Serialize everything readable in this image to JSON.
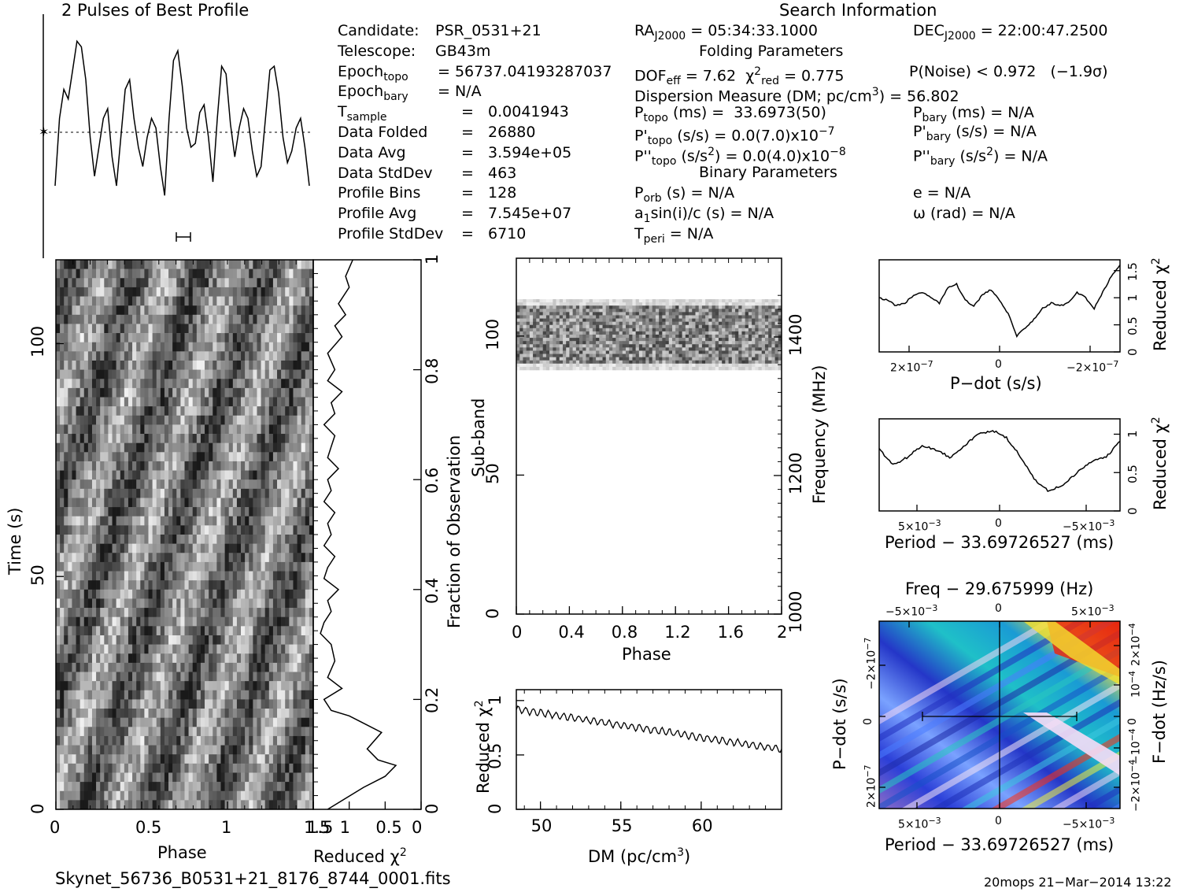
{
  "header": {
    "profile_title": "2 Pulses of Best Profile",
    "search_title": "Search Information",
    "folding_title": "Folding Parameters",
    "binary_title": "Binary Parameters"
  },
  "info_left": [
    {
      "label": "Candidate:",
      "value": "PSR_0531+21"
    },
    {
      "label": "Telescope:",
      "value": "GB43m"
    },
    {
      "label": "Epoch",
      "sub": "topo",
      "value": "= 56737.04193287037"
    },
    {
      "label": "Epoch",
      "sub": "bary",
      "value": "= N/A"
    },
    {
      "label": "T",
      "sub": "sample",
      "value": "=   0.0041943"
    },
    {
      "label": "Data Folded",
      "value": "=   26880"
    },
    {
      "label": "Data Avg",
      "value": "=   3.594e+05"
    },
    {
      "label": "Data StdDev",
      "value": "=   463"
    },
    {
      "label": "Profile Bins",
      "value": "=   128"
    },
    {
      "label": "Profile Avg",
      "value": "=   7.545e+07"
    },
    {
      "label": "Profile StdDev",
      "value": "=   6710"
    }
  ],
  "info_right": {
    "ra": "RA",
    "ra_sub": "J2000",
    "ra_value": "= 05:34:33.1000",
    "dec": "DEC",
    "dec_sub": "J2000",
    "dec_value": "= 22:00:47.2500",
    "dof": "DOF",
    "dof_sub": "eff",
    "dof_value": "= 7.62",
    "chi": "χ",
    "chi_sup": "2",
    "chi_sub": "red",
    "chi_value": "= 0.775",
    "pnoise": "P(Noise) < 0.972   (−1.9σ)",
    "dm": "Dispersion Measure (DM; pc/cm",
    "dm_sup": "3",
    "dm_value": ") = 56.802",
    "ptopo": "P",
    "ptopo_sub": "topo",
    "ptopo_value": " (ms) =  33.6973(50)",
    "pbary": "P",
    "pbary_sub": "bary",
    "pbary_value": " (ms) = N/A",
    "pdtopo": "P'",
    "pdtopo_sub": "topo",
    "pdtopo_value": " (s/s) = 0.0(7.0)x10",
    "pdtopo_exp": "−7",
    "pdbary": "P'",
    "pdbary_sub": "bary",
    "pdbary_value": " (s/s) = N/A",
    "pddtopo": "P''",
    "pddtopo_sub": "topo",
    "pddtopo_value": " (s/s",
    "pddtopo_sup": "2",
    "pddtopo_value2": ") = 0.0(4.0)x10",
    "pddtopo_exp": "−8",
    "pddbary": "P''",
    "pddbary_sub": "bary",
    "pddbary_value": " (s/s",
    "pddbary_sup": "2",
    "pddbary_value2": ") = N/A",
    "porb": "P",
    "porb_sub": "orb",
    "porb_value": " (s) = N/A",
    "e": "e = N/A",
    "a1": "a",
    "a1_sub": "1",
    "a1_value": "sin(i)/c (s) = N/A",
    "omega": "ω (rad) = N/A",
    "tperi": "T",
    "tperi_sub": "peri",
    "tperi_value": " = N/A"
  },
  "labels": {
    "time": "Time (s)",
    "phase": "Phase",
    "reduced_chi": "Reduced χ",
    "chi_sup": "2",
    "fraction": "Fraction of Observation",
    "subband": "Sub-band",
    "frequency": "Frequency (MHz)",
    "dm_axis": "DM (pc/cm",
    "dm_axis_sup": "3",
    "dm_axis_end": ")",
    "pdot": "P−dot (s/s)",
    "period": "Period − 33.69726527 (ms)",
    "freq_title": "Freq − 29.675999 (Hz)",
    "fdot": "F−dot (Hz/s)",
    "pdot_short": "P−dot (s/s)"
  },
  "ticks": {
    "time_left": [
      "0",
      "50",
      "100"
    ],
    "phase_bottom": [
      "0",
      "0.5",
      "1",
      "1.5"
    ],
    "redchi_bottom": [
      "1.5",
      "1",
      "0.5",
      "0"
    ],
    "fraction_right": [
      "0",
      "0.2",
      "0.4",
      "0.6",
      "0.8",
      "1"
    ],
    "subband_left": [
      "0",
      "50",
      "100"
    ],
    "freq_right": [
      "1000",
      "1200",
      "1400"
    ],
    "phase2_bottom": [
      "0",
      "0.4",
      "0.8",
      "1.2",
      "1.6",
      "2"
    ],
    "dm_bottom": [
      "50",
      "55",
      "60"
    ],
    "redchi_dm_left": [
      "0",
      "0.5",
      "1"
    ],
    "pdot_bottom_base": [
      "2×10",
      "0",
      "−2×10"
    ],
    "pdot_bottom_exp": [
      "−7",
      "",
      "−7"
    ],
    "redchi_right": [
      "0",
      "0.5",
      "1",
      "1.5"
    ],
    "redchi_right2": [
      "0",
      "0.5",
      "1"
    ],
    "period_bottom_base": [
      "5×10",
      "0",
      "−5×10"
    ],
    "period_bottom_exp": [
      "−3",
      "",
      "−3"
    ],
    "freq_top_base": [
      "−5×10",
      "0",
      "5×10"
    ],
    "freq_top_exp": [
      "−3",
      "",
      "−3"
    ],
    "pdot_left_base": [
      "−2×10",
      "0",
      "2×10"
    ],
    "pdot_left_exp": [
      "−7",
      "",
      "−7"
    ],
    "fdot_right_base": [
      "2×10",
      "10",
      "0",
      "−10",
      "−2×10"
    ],
    "fdot_right_exp": [
      "−4",
      "−4",
      "",
      "−4",
      "−4"
    ]
  },
  "footer": {
    "filename": "Skynet_56736_B0531+21_8176_8744_0001.fits",
    "stamp": "20mops 21−Mar−2014 13:22"
  },
  "chart_data": [
    {
      "type": "line",
      "name": "profile",
      "xlabel": "",
      "ylabel": "",
      "xlim": [
        0,
        2
      ],
      "y": [
        0.2,
        0.55,
        0.7,
        0.65,
        0.8,
        0.95,
        0.92,
        0.75,
        0.45,
        0.25,
        0.4,
        0.55,
        0.6,
        0.35,
        0.2,
        0.45,
        0.7,
        0.75,
        0.55,
        0.4,
        0.3,
        0.45,
        0.55,
        0.5,
        0.3,
        0.15,
        0.55,
        0.85,
        0.9,
        0.72,
        0.5,
        0.4,
        0.42,
        0.58,
        0.62,
        0.45,
        0.22,
        0.55,
        0.82,
        0.78,
        0.52,
        0.35,
        0.5,
        0.6,
        0.55,
        0.38,
        0.25,
        0.3,
        0.55,
        0.8,
        0.82,
        0.68,
        0.45,
        0.32,
        0.38,
        0.5,
        0.55,
        0.4,
        0.2
      ]
    },
    {
      "type": "line",
      "name": "reduced_chi_time",
      "xlabel": "Reduced χ2",
      "ylabel": "Fraction of Observation",
      "xlim": [
        1.5,
        0
      ],
      "ylim": [
        0,
        1
      ],
      "x": [
        1.3,
        0.8,
        0.5,
        0.35,
        0.6,
        0.75,
        0.55,
        0.85,
        1.0,
        1.25,
        1.35,
        1.1,
        1.3,
        1.2,
        1.25,
        1.4,
        1.35,
        1.25,
        1.3,
        1.15,
        1.35,
        1.3,
        1.2,
        1.35,
        1.25,
        1.3,
        1.2,
        1.35,
        1.25,
        1.3,
        1.15,
        1.3,
        1.25,
        1.2,
        1.35,
        1.2,
        1.25,
        1.1,
        1.3,
        1.2,
        1.3,
        1.1,
        1.2,
        1.05,
        1.15,
        1.0,
        1.05,
        0.95
      ],
      "y": [
        0,
        0.04,
        0.06,
        0.08,
        0.09,
        0.11,
        0.14,
        0.16,
        0.17,
        0.18,
        0.2,
        0.22,
        0.24,
        0.27,
        0.3,
        0.32,
        0.34,
        0.36,
        0.38,
        0.4,
        0.42,
        0.44,
        0.46,
        0.48,
        0.5,
        0.52,
        0.54,
        0.56,
        0.58,
        0.6,
        0.62,
        0.64,
        0.66,
        0.68,
        0.7,
        0.72,
        0.74,
        0.76,
        0.78,
        0.8,
        0.83,
        0.86,
        0.88,
        0.9,
        0.92,
        0.95,
        0.97,
        1.0
      ]
    },
    {
      "type": "line",
      "name": "reduced_chi_dm",
      "xlabel": "DM (pc/cm3)",
      "ylabel": "Reduced χ2",
      "xlim": [
        48.5,
        65
      ],
      "ylim": [
        0,
        1.1
      ],
      "x": [
        48.5,
        65
      ],
      "y": [
        0.92,
        0.55
      ]
    },
    {
      "type": "line",
      "name": "reduced_chi_pdot",
      "xlabel": "P−dot (s/s)",
      "ylabel": "Reduced χ2",
      "ylim": [
        0,
        1.7
      ],
      "y": [
        1.0,
        0.95,
        0.85,
        0.9,
        1.05,
        1.1,
        1.0,
        0.9,
        1.2,
        1.25,
        0.95,
        0.85,
        1.05,
        1.15,
        0.95,
        0.7,
        0.3,
        0.45,
        0.6,
        0.8,
        0.9,
        0.85,
        0.9,
        1.1,
        1.0,
        0.8,
        1.1,
        1.4,
        1.6
      ]
    },
    {
      "type": "line",
      "name": "reduced_chi_period",
      "xlabel": "Period − 33.69726527 (ms)",
      "ylabel": "Reduced χ2",
      "ylim": [
        0,
        1.2
      ],
      "y": [
        0.8,
        0.6,
        0.7,
        0.85,
        0.8,
        0.7,
        0.85,
        1.0,
        1.05,
        0.95,
        0.7,
        0.4,
        0.25,
        0.35,
        0.5,
        0.65,
        0.7,
        0.9
      ]
    }
  ]
}
